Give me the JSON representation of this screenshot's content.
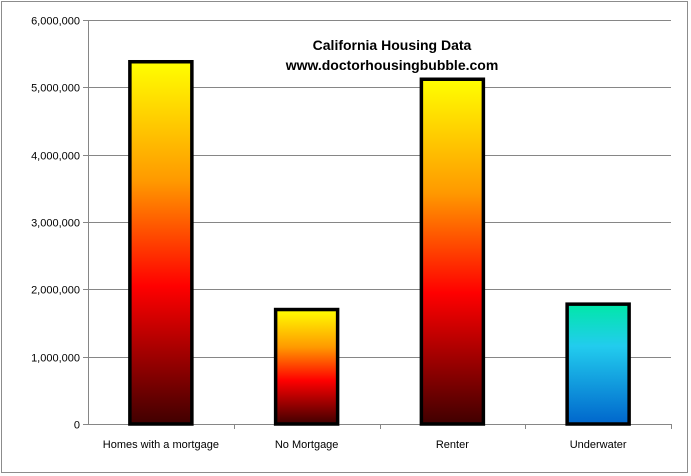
{
  "chart_data": {
    "type": "bar",
    "title": "California Housing Data",
    "subtitle": "www.doctorhousingbubble.com",
    "xlabel": "",
    "ylabel": "",
    "categories": [
      "Homes with a mortgage",
      "No Mortgage",
      "Renter",
      "Underwater"
    ],
    "values": [
      5380000,
      1700000,
      5120000,
      1780000
    ],
    "ylim": [
      0,
      6000000
    ],
    "yticks": [
      0,
      1000000,
      2000000,
      3000000,
      4000000,
      5000000,
      6000000
    ],
    "ytick_labels": [
      "0",
      "1,000,000",
      "2,000,000",
      "3,000,000",
      "4,000,000",
      "5,000,000",
      "6,000,000"
    ],
    "grid": true,
    "legend": "none",
    "bar_fills": [
      "fire",
      "fire",
      "fire",
      "aqua"
    ],
    "colors": {
      "fire": [
        "#ffff00",
        "#ff9900",
        "#ff0000",
        "#400000"
      ],
      "aqua": [
        "#00e8a8",
        "#22ccee",
        "#0066cc"
      ],
      "bar_outline": "#000000",
      "grid": "#868686",
      "axis": "#868686"
    }
  }
}
